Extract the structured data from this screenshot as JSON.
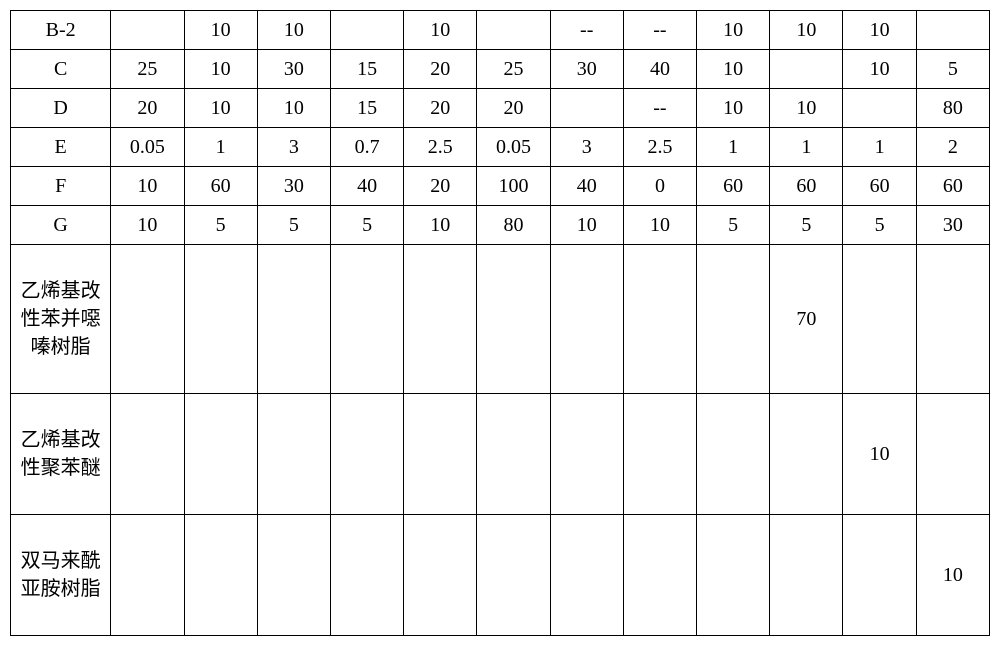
{
  "table": {
    "type": "table",
    "background_color": "#ffffff",
    "border_color": "#000000",
    "font_family": "Times New Roman / SimSun",
    "cell_fontsize": 20,
    "row_label_col_width": 100,
    "data_col_width": 73,
    "short_row_height": 30,
    "tall_row_height": 140,
    "med_row_height": 112,
    "columns": [
      "label",
      "c1",
      "c2",
      "c3",
      "c4",
      "c5",
      "c6",
      "c7",
      "c8",
      "c9",
      "c10",
      "c11",
      "c12"
    ],
    "rows": [
      {
        "label": "B-2",
        "cells": [
          "",
          "10",
          "10",
          "",
          "10",
          "",
          "--",
          "--",
          "10",
          "10",
          "10",
          ""
        ]
      },
      {
        "label": "C",
        "cells": [
          "25",
          "10",
          "30",
          "15",
          "20",
          "25",
          "30",
          "40",
          "10",
          "",
          "10",
          "5"
        ]
      },
      {
        "label": "D",
        "cells": [
          "20",
          "10",
          "10",
          "15",
          "20",
          "20",
          "",
          "--",
          "10",
          "10",
          "",
          "80"
        ]
      },
      {
        "label": "E",
        "cells": [
          "0.05",
          "1",
          "3",
          "0.7",
          "2.5",
          "0.05",
          "3",
          "2.5",
          "1",
          "1",
          "1",
          "2"
        ]
      },
      {
        "label": "F",
        "cells": [
          "10",
          "60",
          "30",
          "40",
          "20",
          "100",
          "40",
          "0",
          "60",
          "60",
          "60",
          "60"
        ]
      },
      {
        "label": "G",
        "cells": [
          "10",
          "5",
          "5",
          "5",
          "10",
          "80",
          "10",
          "10",
          "5",
          "5",
          "5",
          "30"
        ]
      },
      {
        "label": "乙烯基改性苯并噁嗪树脂",
        "tall": true,
        "cells": [
          "",
          "",
          "",
          "",
          "",
          "",
          "",
          "",
          "",
          "70",
          "",
          ""
        ]
      },
      {
        "label": "乙烯基改性聚苯醚",
        "med": true,
        "cells": [
          "",
          "",
          "",
          "",
          "",
          "",
          "",
          "",
          "",
          "",
          "10",
          ""
        ]
      },
      {
        "label": "双马来酰亚胺树脂",
        "med": true,
        "cells": [
          "",
          "",
          "",
          "",
          "",
          "",
          "",
          "",
          "",
          "",
          "",
          "10"
        ]
      }
    ]
  }
}
